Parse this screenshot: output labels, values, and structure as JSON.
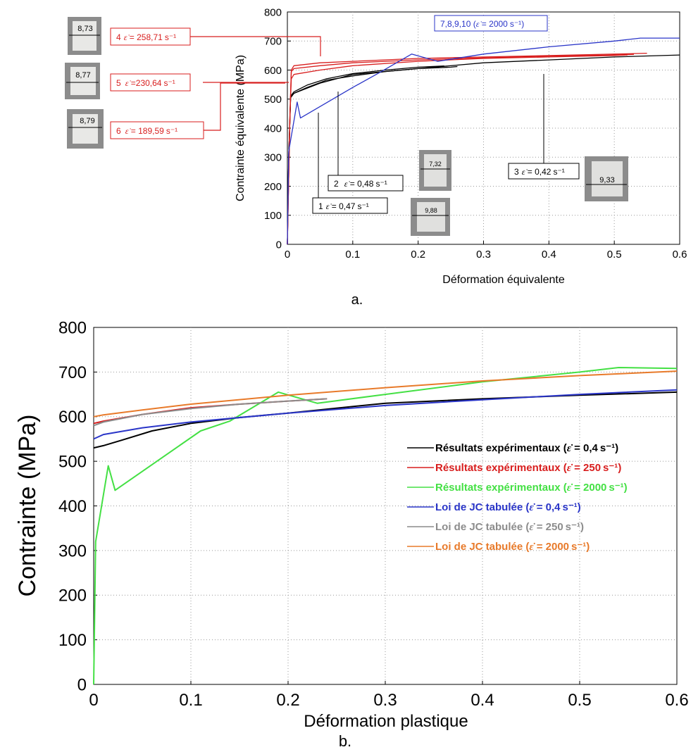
{
  "chart_data": [
    {
      "type": "line",
      "xlabel": "Déformation équivalente",
      "ylabel": "Contrainte équivalente (MPa)",
      "caption": "a.",
      "xlim": [
        0,
        0.6
      ],
      "ylim": [
        0,
        800
      ],
      "x_ticks": [
        "0",
        "0.1",
        "0.2",
        "0.3",
        "0.4",
        "0.5",
        "0.6"
      ],
      "y_ticks": [
        "0",
        "100",
        "200",
        "300",
        "400",
        "500",
        "600",
        "700",
        "800"
      ],
      "grid": true,
      "series": [
        {
          "name": "1",
          "color": "#000000",
          "x": [
            0,
            0.002,
            0.005,
            0.01,
            0.03,
            0.06,
            0.1,
            0.15,
            0.2,
            0.25,
            0.26
          ],
          "y": [
            0,
            300,
            505,
            520,
            540,
            565,
            580,
            595,
            605,
            610,
            612
          ]
        },
        {
          "name": "2",
          "color": "#000000",
          "x": [
            0,
            0.002,
            0.005,
            0.01,
            0.03,
            0.06,
            0.1,
            0.15,
            0.2,
            0.24
          ],
          "y": [
            0,
            300,
            510,
            525,
            548,
            570,
            588,
            600,
            610,
            614
          ]
        },
        {
          "name": "3",
          "color": "#000000",
          "x": [
            0,
            0.002,
            0.005,
            0.01,
            0.05,
            0.1,
            0.2,
            0.3,
            0.4,
            0.5,
            0.6
          ],
          "y": [
            0,
            300,
            505,
            520,
            555,
            585,
            605,
            625,
            635,
            645,
            652
          ]
        },
        {
          "name": "4",
          "color": "#d81e1e",
          "x": [
            0,
            0.004,
            0.006,
            0.01,
            0.05,
            0.1,
            0.2,
            0.3,
            0.4,
            0.5,
            0.55
          ],
          "y": [
            0,
            450,
            600,
            615,
            625,
            630,
            640,
            645,
            650,
            655,
            658
          ]
        },
        {
          "name": "5",
          "color": "#d81e1e",
          "x": [
            0,
            0.004,
            0.006,
            0.01,
            0.05,
            0.1,
            0.2,
            0.3,
            0.4,
            0.5,
            0.53
          ],
          "y": [
            0,
            450,
            595,
            605,
            615,
            625,
            635,
            642,
            648,
            652,
            654
          ]
        },
        {
          "name": "6",
          "color": "#d81e1e",
          "x": [
            0,
            0.004,
            0.006,
            0.01,
            0.05,
            0.1,
            0.2,
            0.3,
            0.4,
            0.5,
            0.52
          ],
          "y": [
            0,
            450,
            570,
            585,
            600,
            615,
            630,
            640,
            645,
            650,
            652
          ]
        },
        {
          "name": "7,8,9,10",
          "color": "#2a35c8",
          "x": [
            0,
            0.002,
            0.015,
            0.02,
            0.1,
            0.14,
            0.19,
            0.23,
            0.3,
            0.4,
            0.5,
            0.54,
            0.6
          ],
          "y": [
            0,
            320,
            490,
            435,
            540,
            590,
            655,
            630,
            655,
            680,
            700,
            710,
            710
          ]
        }
      ],
      "annotations": [
        {
          "id": "4",
          "rate_value": "258,71",
          "unit": "s⁻¹",
          "color": "#d81e1e",
          "specimen_dim": "8,73"
        },
        {
          "id": "5",
          "rate_value": "230,64",
          "unit": "s⁻¹",
          "color": "#d81e1e",
          "specimen_dim": "8,77"
        },
        {
          "id": "6",
          "rate_value": "189,59",
          "unit": "s⁻¹",
          "color": "#d81e1e",
          "specimen_dim": "8,79"
        },
        {
          "id": "7,8,9,10",
          "rate_value": "2000",
          "unit": "s⁻¹",
          "color": "#2a35c8"
        },
        {
          "id": "2",
          "rate_value": "0,48",
          "unit": "s⁻¹",
          "color": "#000000",
          "specimen_dim": "7,32"
        },
        {
          "id": "1",
          "rate_value": "0,47",
          "unit": "s⁻¹",
          "color": "#000000",
          "specimen_dim": "9,88"
        },
        {
          "id": "3",
          "rate_value": "0,42",
          "unit": "s⁻¹",
          "color": "#000000",
          "specimen_dim": "9,33"
        }
      ]
    },
    {
      "type": "line",
      "xlabel": "Déformation plastique",
      "ylabel": "Contrainte (MPa)",
      "caption": "b.",
      "xlim": [
        0,
        0.6
      ],
      "ylim": [
        0,
        800
      ],
      "x_ticks": [
        "0",
        "0.1",
        "0.2",
        "0.3",
        "0.4",
        "0.5",
        "0.6"
      ],
      "y_ticks": [
        "0",
        "100",
        "200",
        "300",
        "400",
        "500",
        "600",
        "700",
        "800"
      ],
      "grid": true,
      "legend_position": "center-right",
      "series": [
        {
          "name": "Résultats expérimentaux",
          "rate": "0,4",
          "color": "#000000",
          "x": [
            0,
            0.01,
            0.03,
            0.06,
            0.1,
            0.15,
            0.2,
            0.3,
            0.4,
            0.5,
            0.6
          ],
          "y": [
            530,
            535,
            548,
            568,
            585,
            598,
            608,
            630,
            640,
            648,
            655
          ]
        },
        {
          "name": "Résultats expérimentaux",
          "rate": "250",
          "color": "#d81e1e",
          "x": [
            0,
            0.01,
            0.05,
            0.1,
            0.15,
            0.2,
            0.24
          ],
          "y": [
            585,
            590,
            605,
            620,
            628,
            635,
            640
          ]
        },
        {
          "name": "Résultats expérimentaux",
          "rate": "2000",
          "color": "#44e044",
          "x": [
            0,
            0.002,
            0.015,
            0.022,
            0.11,
            0.14,
            0.19,
            0.23,
            0.3,
            0.4,
            0.5,
            0.54,
            0.6
          ],
          "y": [
            0,
            320,
            490,
            435,
            568,
            590,
            655,
            630,
            650,
            678,
            700,
            710,
            708
          ]
        },
        {
          "name": "Loi de JC tabulée",
          "rate": "0,4",
          "color": "#2a35c8",
          "x": [
            0,
            0.01,
            0.05,
            0.1,
            0.2,
            0.3,
            0.4,
            0.5,
            0.6
          ],
          "y": [
            550,
            560,
            575,
            588,
            608,
            625,
            638,
            650,
            660
          ]
        },
        {
          "name": "Loi de JC tabulée",
          "rate": "250",
          "color": "#8c8c8c",
          "x": [
            0,
            0.01,
            0.05,
            0.1,
            0.15,
            0.2,
            0.24
          ],
          "y": [
            580,
            588,
            605,
            618,
            628,
            635,
            640
          ]
        },
        {
          "name": "Loi de JC tabulée",
          "rate": "2000",
          "color": "#e87a2a",
          "x": [
            0,
            0.01,
            0.05,
            0.1,
            0.2,
            0.3,
            0.4,
            0.5,
            0.6
          ],
          "y": [
            600,
            604,
            615,
            628,
            648,
            665,
            680,
            692,
            702
          ]
        }
      ],
      "legend_unit": "s⁻¹"
    }
  ]
}
